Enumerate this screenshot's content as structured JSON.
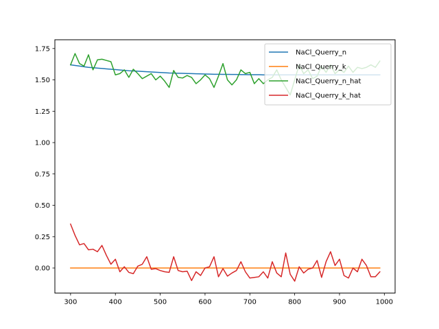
{
  "chart_data": {
    "type": "line",
    "title": "",
    "xlabel": "",
    "ylabel": "",
    "xlim": [
      265,
      1024
    ],
    "ylim": [
      -0.2,
      1.82
    ],
    "x_ticks": [
      300,
      400,
      500,
      600,
      700,
      800,
      900,
      1000
    ],
    "x_tick_labels": [
      "300",
      "400",
      "500",
      "600",
      "700",
      "800",
      "900",
      "1000"
    ],
    "y_ticks": [
      0.0,
      0.25,
      0.5,
      0.75,
      1.0,
      1.25,
      1.5,
      1.75
    ],
    "y_tick_labels": [
      "0.00",
      "0.25",
      "0.50",
      "0.75",
      "1.00",
      "1.25",
      "1.50",
      "1.75"
    ],
    "grid": false,
    "legend_position": "top-right",
    "x": [
      300,
      310,
      320,
      330,
      340,
      350,
      360,
      370,
      380,
      390,
      400,
      410,
      420,
      430,
      440,
      450,
      460,
      470,
      480,
      490,
      500,
      510,
      520,
      530,
      540,
      550,
      560,
      570,
      580,
      590,
      600,
      610,
      620,
      630,
      640,
      650,
      660,
      670,
      680,
      690,
      700,
      710,
      720,
      730,
      740,
      750,
      760,
      770,
      780,
      790,
      800,
      810,
      820,
      830,
      840,
      850,
      860,
      870,
      880,
      890,
      900,
      910,
      920,
      930,
      940,
      950,
      960,
      970,
      980,
      990
    ],
    "series": [
      {
        "name": "NaCl_Querry_n",
        "color": "#1f77b4",
        "values": [
          1.62,
          1.615,
          1.61,
          1.605,
          1.6,
          1.597,
          1.594,
          1.591,
          1.588,
          1.585,
          1.582,
          1.579,
          1.576,
          1.573,
          1.571,
          1.569,
          1.567,
          1.565,
          1.563,
          1.561,
          1.559,
          1.557,
          1.555,
          1.554,
          1.553,
          1.552,
          1.551,
          1.55,
          1.549,
          1.548,
          1.547,
          1.546,
          1.545,
          1.545,
          1.544,
          1.544,
          1.543,
          1.543,
          1.542,
          1.542,
          1.541,
          1.541,
          1.541,
          1.54,
          1.54,
          1.54,
          1.54,
          1.54,
          1.54,
          1.54,
          1.54,
          1.54,
          1.54,
          1.54,
          1.54,
          1.54,
          1.54,
          1.54,
          1.54,
          1.54,
          1.54,
          1.54,
          1.54,
          1.54,
          1.54,
          1.54,
          1.54,
          1.54,
          1.54,
          1.54
        ]
      },
      {
        "name": "NaCl_Querry_k",
        "color": "#ff7f0e",
        "values": [
          0,
          0,
          0,
          0,
          0,
          0,
          0,
          0,
          0,
          0,
          0,
          0,
          0,
          0,
          0,
          0,
          0,
          0,
          0,
          0,
          0,
          0,
          0,
          0,
          0,
          0,
          0,
          0,
          0,
          0,
          0,
          0,
          0,
          0,
          0,
          0,
          0,
          0,
          0,
          0,
          0,
          0,
          0,
          0,
          0,
          0,
          0,
          0,
          0,
          0,
          0,
          0,
          0,
          0,
          0,
          0,
          0,
          0,
          0,
          0,
          0,
          0,
          0,
          0,
          0,
          0,
          0,
          0,
          0,
          0
        ]
      },
      {
        "name": "NaCl_Querry_n_hat",
        "color": "#2ca02c",
        "values": [
          1.62,
          1.71,
          1.63,
          1.61,
          1.7,
          1.58,
          1.66,
          1.665,
          1.655,
          1.645,
          1.54,
          1.55,
          1.58,
          1.52,
          1.585,
          1.55,
          1.51,
          1.53,
          1.55,
          1.5,
          1.53,
          1.49,
          1.44,
          1.575,
          1.52,
          1.515,
          1.535,
          1.52,
          1.47,
          1.5,
          1.54,
          1.51,
          1.44,
          1.53,
          1.63,
          1.5,
          1.46,
          1.5,
          1.58,
          1.55,
          1.56,
          1.47,
          1.51,
          1.47,
          1.5,
          1.52,
          1.58,
          1.5,
          1.44,
          1.38,
          1.5,
          1.62,
          1.55,
          1.58,
          1.51,
          1.53,
          1.61,
          1.56,
          1.62,
          1.55,
          1.58,
          1.56,
          1.61,
          1.56,
          1.6,
          1.59,
          1.6,
          1.62,
          1.6,
          1.65
        ]
      },
      {
        "name": "NaCl_Querry_k_hat",
        "color": "#d62728",
        "values": [
          0.35,
          0.26,
          0.185,
          0.195,
          0.145,
          0.15,
          0.13,
          0.18,
          0.1,
          0.03,
          0.07,
          -0.03,
          0.01,
          -0.035,
          -0.045,
          0.015,
          0.03,
          0.09,
          -0.01,
          -0.005,
          -0.02,
          -0.03,
          -0.035,
          0.09,
          -0.02,
          -0.03,
          -0.025,
          -0.1,
          -0.03,
          -0.06,
          0.0,
          0.01,
          0.09,
          -0.07,
          -0.005,
          -0.065,
          -0.04,
          -0.02,
          0.05,
          -0.03,
          -0.08,
          -0.075,
          -0.07,
          -0.03,
          -0.08,
          0.05,
          -0.04,
          -0.07,
          0.12,
          -0.05,
          -0.105,
          0.01,
          -0.04,
          -0.01,
          0.0,
          0.06,
          -0.075,
          0.05,
          0.13,
          0.02,
          0.07,
          -0.06,
          -0.08,
          0.0,
          -0.03,
          0.07,
          0.02,
          -0.07,
          -0.07,
          -0.03
        ]
      }
    ]
  }
}
